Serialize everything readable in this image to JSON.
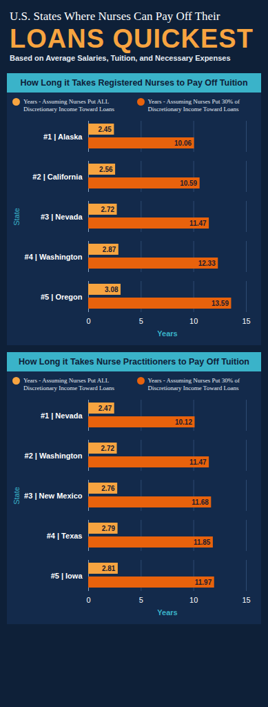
{
  "header": {
    "title": "U.S. States Where Nurses Can Pay Off Their",
    "title_emphasis": "LOANS QUICKEST",
    "subtitle": "Based on Average Salaries, Tuition, and Necessary Expenses"
  },
  "chart_data": [
    {
      "type": "bar",
      "orientation": "horizontal",
      "title": "How Long it Takes Registered Nurses to Pay Off Tuition",
      "x_label": "Years",
      "y_label": "State",
      "categories": [
        "#1 | Alaska",
        "#2 | California",
        "#3 | Nevada",
        "#4 | Washington",
        "#5 | Oregon"
      ],
      "series": [
        {
          "name": "Years - Assuming Nurses Put ALL Discretionary Income Toward Loans",
          "color": "#f7a440",
          "values": [
            2.45,
            2.56,
            2.72,
            2.87,
            3.08
          ]
        },
        {
          "name": "Years - Assuming Nurses Put 30% of Discretionary Income Toward Loans",
          "color": "#e8620c",
          "values": [
            10.06,
            10.59,
            11.47,
            12.33,
            13.59
          ]
        }
      ],
      "xlim": [
        0,
        15
      ],
      "xticks": [
        0,
        5,
        10,
        15
      ],
      "grid": true,
      "data_labels": true,
      "legend": "top"
    },
    {
      "type": "bar",
      "orientation": "horizontal",
      "title": "How Long it Takes Nurse Practitioners to Pay Off Tuition",
      "x_label": "Years",
      "y_label": "State",
      "categories": [
        "#1 | Nevada",
        "#2 | Washington",
        "#3 | New Mexico",
        "#4 | Texas",
        "#5 | Iowa"
      ],
      "series": [
        {
          "name": "Years - Assuming Nurses Put ALL Discretionary Income Toward Loans",
          "color": "#f7a440",
          "values": [
            2.47,
            2.72,
            2.76,
            2.79,
            2.81
          ]
        },
        {
          "name": "Years - Assuming Nurses Put 30% of Discretionary Income Toward Loans",
          "color": "#e8620c",
          "values": [
            10.12,
            11.47,
            11.68,
            11.85,
            11.97
          ]
        }
      ],
      "xlim": [
        0,
        15
      ],
      "xticks": [
        0,
        5,
        10,
        15
      ],
      "grid": true,
      "data_labels": true,
      "legend": "top"
    }
  ]
}
